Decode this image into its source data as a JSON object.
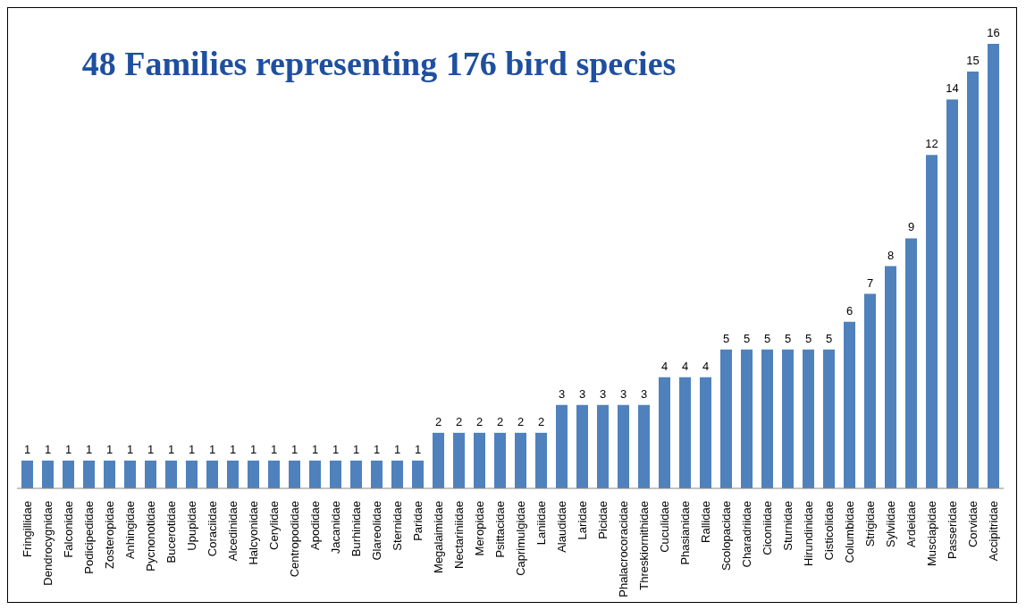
{
  "chart_data": {
    "type": "bar",
    "title": "48 Families representing 176 bird species",
    "categories": [
      "Fringillidae",
      "Dendrocygnidae",
      "Falconidae",
      "Podicipedidae",
      "Zosteropidae",
      "Anhingidae",
      "Pycnonotidae",
      "Bucerotidae",
      "Upupidae",
      "Coraciidae",
      "Alcedinidae",
      "Halcyonidae",
      "Cerylidae",
      "Centropodidae",
      "Apodidae",
      "Jacanidae",
      "Burhinidae",
      "Glareolidae",
      "Sternidae",
      "Paridae",
      "Megalaimidae",
      "Nectariniidae",
      "Meropidae",
      "Psittacidae",
      "Caprimulgidae",
      "Laniidae",
      "Alaudidae",
      "Laridae",
      "Picidae",
      "Phalacrocoracidae",
      "Threskiornithidae",
      "Cuculidae",
      "Phasianidae",
      "Rallidae",
      "Scolopacidae",
      "Charadriidae",
      "Ciconiidae",
      "Sturnidae",
      "Hirundinidae",
      "Cisticolidae",
      "Columbidae",
      "Strigidae",
      "Sylviidae",
      "Ardeidae",
      "Musciapidae",
      "Passeridae",
      "Corvidae",
      "Accipitridae"
    ],
    "values": [
      1,
      1,
      1,
      1,
      1,
      1,
      1,
      1,
      1,
      1,
      1,
      1,
      1,
      1,
      1,
      1,
      1,
      1,
      1,
      1,
      2,
      2,
      2,
      2,
      2,
      2,
      3,
      3,
      3,
      3,
      3,
      4,
      4,
      4,
      5,
      5,
      5,
      5,
      5,
      5,
      6,
      7,
      8,
      9,
      12,
      14,
      15,
      16
    ],
    "color": "#4f81bd",
    "data_labels": true
  }
}
